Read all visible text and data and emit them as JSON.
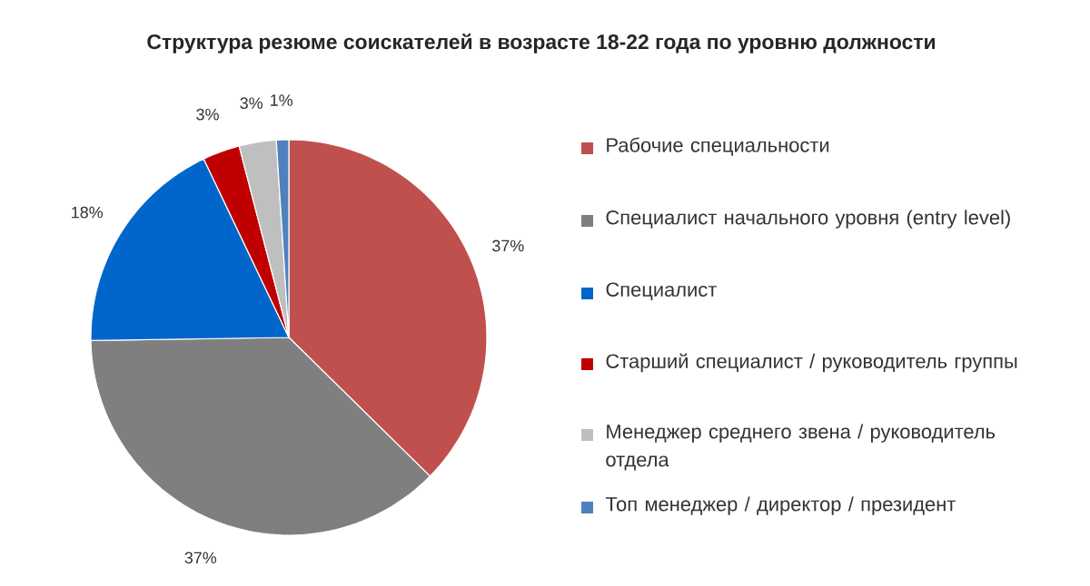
{
  "chart_data": {
    "type": "pie",
    "title": "Структура резюме соискателей в возрасте 18-22 года по уровню должности",
    "categories": [
      "Рабочие специальности",
      "Специалист начального уровня (entry level)",
      "Специалист",
      "Старший специалист / руководитель группы",
      "Менеджер среднего звена / руководитель отдела",
      "Топ менеджер / директор / президент"
    ],
    "values": [
      37,
      37,
      18,
      3,
      3,
      1
    ],
    "value_labels": [
      "37%",
      "37%",
      "18%",
      "3%",
      "3%",
      "1%"
    ],
    "colors": [
      "#c0504d",
      "#7f7f7f",
      "#0066cc",
      "#c00000",
      "#bfbfbf",
      "#4f81bd"
    ],
    "legend": "right"
  }
}
